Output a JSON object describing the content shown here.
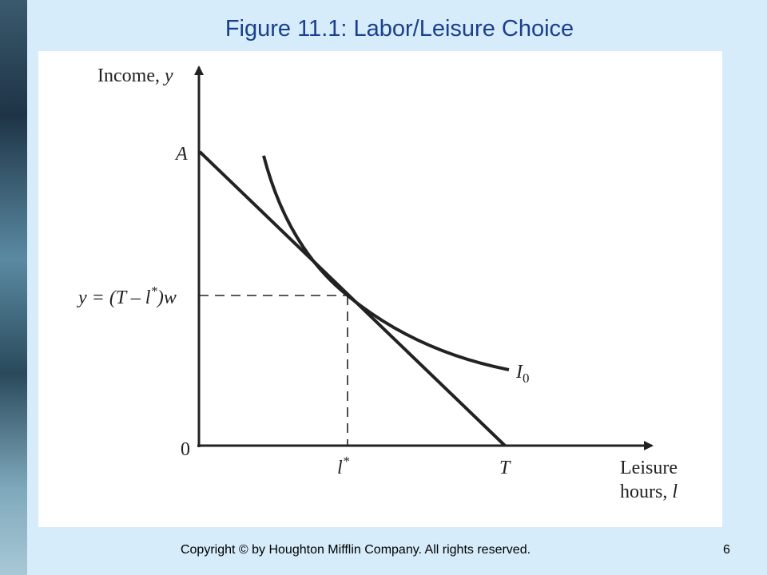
{
  "header": {
    "title": "Figure 11.1:  Labor/Leisure Choice"
  },
  "diagram": {
    "y_axis_label": [
      "Income, ",
      "y"
    ],
    "x_axis_label": {
      "line1": "Leisure",
      "line2": [
        "hours, ",
        "l"
      ]
    },
    "origin": "0",
    "intercept_label": "A",
    "income_label": [
      "y = (T – l",
      "*",
      ")w"
    ],
    "leisure_label": [
      "l",
      "*"
    ],
    "endowment_label": "T",
    "curve_label": [
      "I",
      "0"
    ]
  },
  "footer": {
    "copyright": "Copyright © by Houghton Mifflin Company. All rights reserved.",
    "page": "6"
  }
}
